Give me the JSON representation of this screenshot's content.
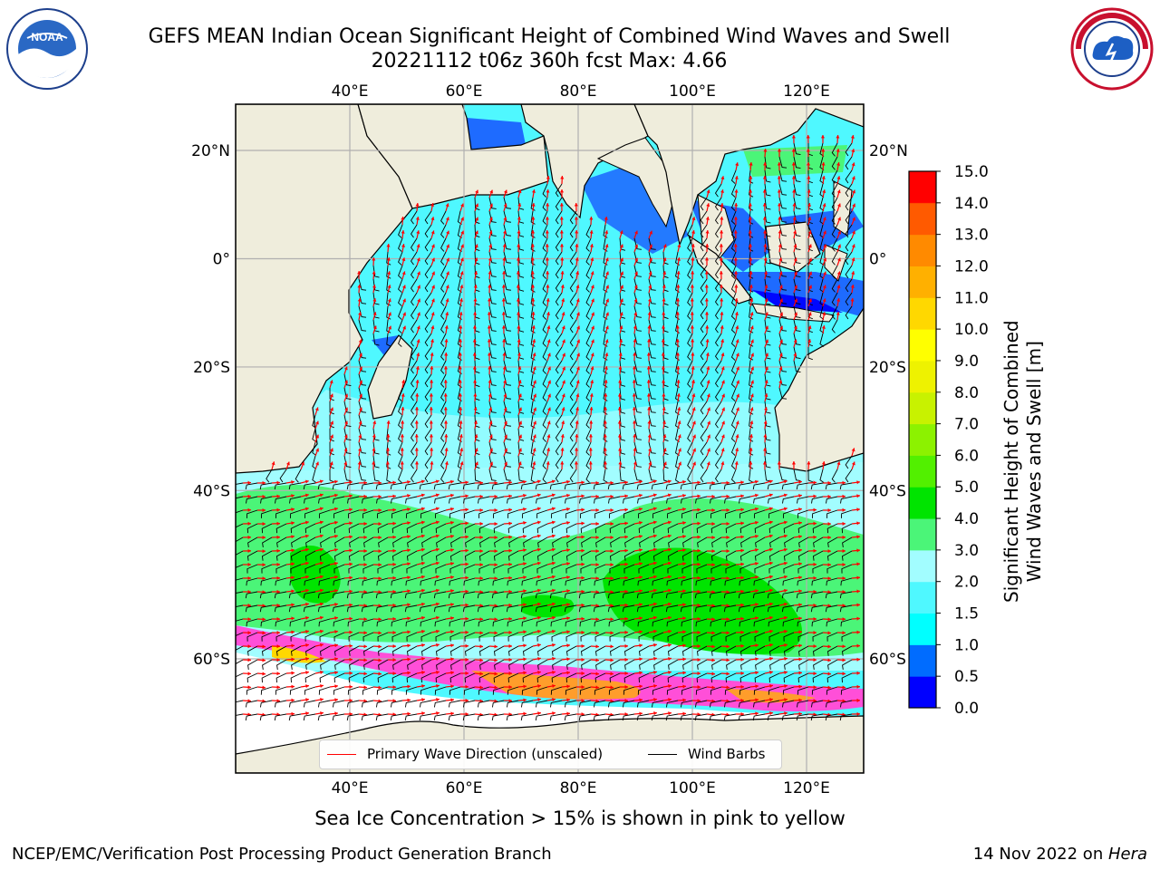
{
  "title": {
    "line1": "GEFS MEAN Indian Ocean Significant Height of Combined Wind Waves and Swell",
    "line2": "20221112 t06z 360h fcst   Max: 4.66"
  },
  "logos": {
    "left": {
      "name": "noaa-logo",
      "text": "NOAA",
      "ring_text": "NATIONAL OCEANIC AND ATMOSPHERIC ADMINISTRATION · U.S. DEPARTMENT OF COMMERCE"
    },
    "right": {
      "name": "nws-logo",
      "ring_text": "NATIONAL WEATHER SERVICE"
    }
  },
  "map": {
    "lon_ticks": [
      "40°E",
      "60°E",
      "80°E",
      "100°E",
      "120°E"
    ],
    "lat_ticks": [
      "20°N",
      "0°",
      "20°S",
      "40°S",
      "60°S"
    ],
    "lon_values": [
      40,
      60,
      80,
      100,
      120
    ],
    "lat_values": [
      20,
      0,
      -20,
      -40,
      -60
    ],
    "extent": {
      "lon": [
        20,
        130
      ],
      "lat": [
        -73,
        28
      ]
    },
    "colors": {
      "land": "#efeddc",
      "ocean_low": "#4ff8ff",
      "ocean_mid": "#a2fdff",
      "green_light": "#4bf578",
      "green": "#00e400",
      "blue": "#1e6bff",
      "deep_blue": "#0007ff",
      "wave_arrow": "#ff0000",
      "wind_barb": "#000000",
      "ice": "#ff4fd8"
    },
    "max_value": 4.66
  },
  "colorbar": {
    "ticks": [
      "0.0",
      "0.5",
      "1.0",
      "1.5",
      "2.0",
      "3.0",
      "4.0",
      "5.0",
      "6.0",
      "7.0",
      "8.0",
      "9.0",
      "10.0",
      "11.0",
      "12.0",
      "13.0",
      "14.0",
      "15.0"
    ],
    "colors": [
      "#0000ff",
      "#006cff",
      "#00ffff",
      "#4ff8ff",
      "#a2fdff",
      "#4bf578",
      "#00e400",
      "#52f000",
      "#8cf200",
      "#c8f200",
      "#eef200",
      "#ffff00",
      "#ffd800",
      "#ffb000",
      "#ff8a00",
      "#ff5a00",
      "#ff2800",
      "#ff0000"
    ],
    "label_line1": "Significant Height of Combined",
    "label_line2": "Wind Waves and Swell [m]"
  },
  "legend": {
    "wave_label": "Primary Wave Direction (unscaled)",
    "wind_label": "Wind Barbs"
  },
  "caption": "Sea Ice Concentration > 15% is shown in pink to yellow",
  "footer": {
    "left": "NCEP/EMC/Verification Post Processing Product Generation Branch",
    "date": "14 Nov 2022 on ",
    "machine": "Hera"
  }
}
